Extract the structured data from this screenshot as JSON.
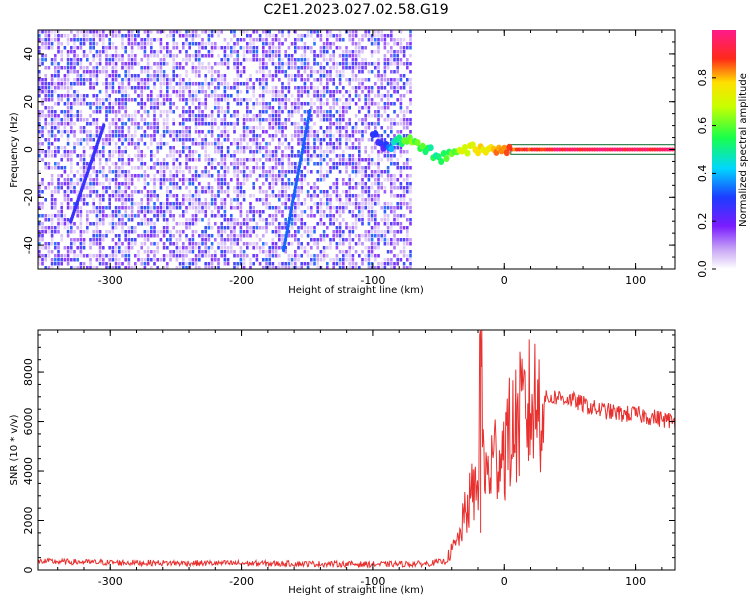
{
  "title": "C2E1.2023.027.02.58.G19",
  "colors": {
    "snr_line": "#e8312f",
    "frame": "#000000"
  },
  "chart_data": [
    {
      "type": "heatmap",
      "xlabel": "Height of straight line (km)",
      "ylabel": "Frequency (Hz)",
      "xlim": [
        -355,
        130
      ],
      "ylim": [
        -50,
        50
      ],
      "x_ticks": [
        -300,
        -200,
        -100,
        0,
        100
      ],
      "y_ticks": [
        -40,
        -20,
        0,
        20,
        40
      ],
      "x_tick_labels": [
        "-300",
        "-200",
        "-100",
        "0",
        "100"
      ],
      "y_tick_labels": [
        "-40",
        "-20",
        "0",
        "20",
        "40"
      ],
      "colorbar": {
        "label": "Normalized spectral amplitude",
        "range": [
          0.0,
          1.0
        ],
        "ticks": [
          0.0,
          0.2,
          0.4,
          0.6,
          0.8
        ],
        "tick_labels": [
          "0.0",
          "0.2",
          "0.4",
          "0.6",
          "0.8"
        ],
        "colormap": "rainbow (white-purple-blue-cyan-green-yellow-red-magenta)"
      },
      "noise_region_x": [
        -355,
        -70
      ],
      "tone_trace": [
        {
          "x": -100,
          "f": 6,
          "amp": 0.3
        },
        {
          "x": -90,
          "f": 1,
          "amp": 0.25
        },
        {
          "x": -80,
          "f": 3,
          "amp": 0.55
        },
        {
          "x": -70,
          "f": 3,
          "amp": 0.6
        },
        {
          "x": -60,
          "f": 1,
          "amp": 0.55
        },
        {
          "x": -50,
          "f": -4,
          "amp": 0.5
        },
        {
          "x": -40,
          "f": -1,
          "amp": 0.6
        },
        {
          "x": -30,
          "f": 0,
          "amp": 0.7
        },
        {
          "x": -20,
          "f": 0,
          "amp": 0.75
        },
        {
          "x": -10,
          "f": 0,
          "amp": 0.8
        },
        {
          "x": 0,
          "f": 0,
          "amp": 0.85
        },
        {
          "x": 50,
          "f": 0,
          "amp": 0.95
        },
        {
          "x": 130,
          "f": 0,
          "amp": 0.95
        }
      ]
    },
    {
      "type": "line",
      "xlabel": "Height of straight line (km)",
      "ylabel": "SNR (10 * v/v)",
      "xlim": [
        -355,
        130
      ],
      "ylim": [
        0,
        9700
      ],
      "x_ticks": [
        -300,
        -200,
        -100,
        0,
        100
      ],
      "y_ticks": [
        0,
        2000,
        4000,
        6000,
        8000
      ],
      "x_tick_labels": [
        "-300",
        "-200",
        "-100",
        "0",
        "100"
      ],
      "y_tick_labels": [
        "0",
        "2000",
        "4000",
        "6000",
        "8000"
      ],
      "series": [
        {
          "x": [
            -355,
            -300,
            -250,
            -200,
            -150,
            -100,
            -60,
            -45,
            -35,
            -30,
            -25,
            -20,
            -18,
            -15,
            -10,
            -5,
            0,
            5,
            10,
            20,
            30,
            40,
            50,
            60,
            70,
            80,
            90,
            100,
            110,
            120,
            130
          ],
          "y": [
            350,
            300,
            280,
            270,
            250,
            230,
            250,
            350,
            1200,
            2200,
            3000,
            3400,
            9700,
            3600,
            4200,
            4800,
            5000,
            5500,
            6000,
            6600,
            6900,
            7000,
            6900,
            6700,
            6500,
            6400,
            6300,
            6300,
            6200,
            6100,
            6000
          ]
        }
      ]
    }
  ]
}
